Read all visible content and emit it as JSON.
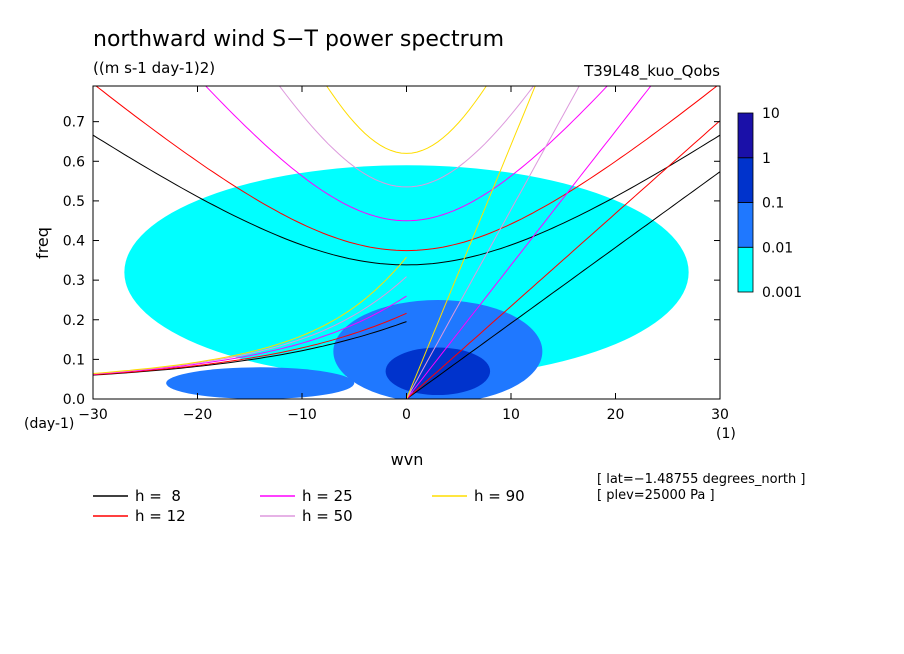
{
  "chart_data": {
    "type": "heatmap",
    "title": "northward wind S−T power spectrum",
    "units_label": "((m s-1 day-1)2)",
    "run_label": "T39L48_kuo_Qobs",
    "xlabel": "wvn",
    "ylabel": "freq",
    "x_unit_label": "(1)",
    "y_unit_label": "(day-1)",
    "xlim": [
      -30,
      30
    ],
    "ylim": [
      0,
      0.79
    ],
    "x_ticks": [
      -30,
      -20,
      -10,
      0,
      10,
      20,
      30
    ],
    "x_tick_labels": [
      "−30",
      "−20",
      "−10",
      "0",
      "10",
      "20",
      "30"
    ],
    "y_ticks": [
      0,
      0.1,
      0.2,
      0.3,
      0.4,
      0.5,
      0.6,
      0.7
    ],
    "y_tick_labels": [
      "0.0",
      "0.1",
      "0.2",
      "0.3",
      "0.4",
      "0.5",
      "0.6",
      "0.7"
    ],
    "colorbar": {
      "levels": [
        0.001,
        0.01,
        0.1,
        1,
        10
      ],
      "labels": [
        "0.001",
        "0.01",
        "0.1",
        "1",
        "10"
      ],
      "colors": [
        "#00ffff",
        "#1f78ff",
        "#0033cc",
        "#1a10a8",
        "#4b10a8"
      ]
    },
    "power_regions": [
      {
        "level": 0.001,
        "shape": "ellipse",
        "cx": 0,
        "cy": 0.32,
        "rx": 27,
        "ry": 0.27
      },
      {
        "level": 0.01,
        "shape": "ellipse",
        "cx": 3,
        "cy": 0.12,
        "rx": 10,
        "ry": 0.13
      },
      {
        "level": 0.01,
        "shape": "ellipse",
        "cx": -14,
        "cy": 0.04,
        "rx": 9,
        "ry": 0.04
      },
      {
        "level": 0.1,
        "shape": "ellipse",
        "cx": 3,
        "cy": 0.07,
        "rx": 5,
        "ry": 0.06
      }
    ],
    "dispersion_curves": [
      {
        "h": 8,
        "color": "#000000"
      },
      {
        "h": 12,
        "color": "#ff0000"
      },
      {
        "h": 25,
        "color": "#ff00ff"
      },
      {
        "h": 50,
        "color": "#dd99dd"
      },
      {
        "h": 90,
        "color": "#ffdd00"
      }
    ],
    "legend": [
      {
        "label": "h =  8",
        "color": "#000000"
      },
      {
        "label": "h = 12",
        "color": "#ff0000"
      },
      {
        "label": "h = 25",
        "color": "#ff00ff"
      },
      {
        "label": "h = 50",
        "color": "#dd99dd"
      },
      {
        "label": "h = 90",
        "color": "#ffdd00"
      }
    ],
    "info_lines": [
      "[ lat=−1.48755 degrees_north ]",
      "[ plev=25000 Pa ]"
    ]
  }
}
